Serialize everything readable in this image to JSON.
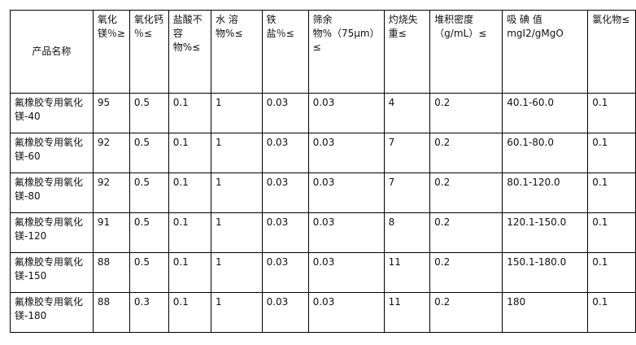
{
  "headers": [
    "产品名称",
    "氧化镁％≥",
    "氧化钙 ％≤",
    "盐酸不容物%≤",
    "水 溶物%≤",
    "铁盐％≤",
    "筛余物%（75μm）≤",
    "灼烧失重≤",
    "堆积密度（g/mL）≤",
    "吸 碘 值 mgI2/gMgO",
    "氯化物≤"
  ],
  "rows": [
    [
      "氟橡胶专用氧化镁-40",
      "95",
      "0.5",
      "0.1",
      "1",
      "0.03",
      "0.03",
      "4",
      "0.2",
      "40.1-60.0",
      "0.1"
    ],
    [
      "氟橡胶专用氧化镁-60",
      "92",
      "0.5",
      "0.1",
      "1",
      "0.03",
      "0.03",
      "7",
      "0.2",
      "60.1-80.0",
      "0.1"
    ],
    [
      "氟橡胶专用氧化镁-80",
      "92",
      "0.5",
      "0.1",
      "1",
      "0.03",
      "0.03",
      "7",
      "0.2",
      "80.1-120.0",
      "0.1"
    ],
    [
      "氟橡胶专用氧化镁-120",
      "91",
      "0.5",
      "0.1",
      "1",
      "0.03",
      "0.03",
      "8",
      "0.2",
      "120.1-150.0",
      "0.1"
    ],
    [
      "氟橡胶专用氧化镁-150",
      "88",
      "0.5",
      "0.1",
      "1",
      "0.03",
      "0.03",
      "11",
      "0.2",
      "150.1-180.0",
      "0.1"
    ],
    [
      "氟橡胶专用氧化镁-180",
      "88",
      "0.3",
      "0.1",
      "1",
      "0.03",
      "0.03",
      "11",
      "0.2",
      "180",
      "0.1"
    ]
  ]
}
